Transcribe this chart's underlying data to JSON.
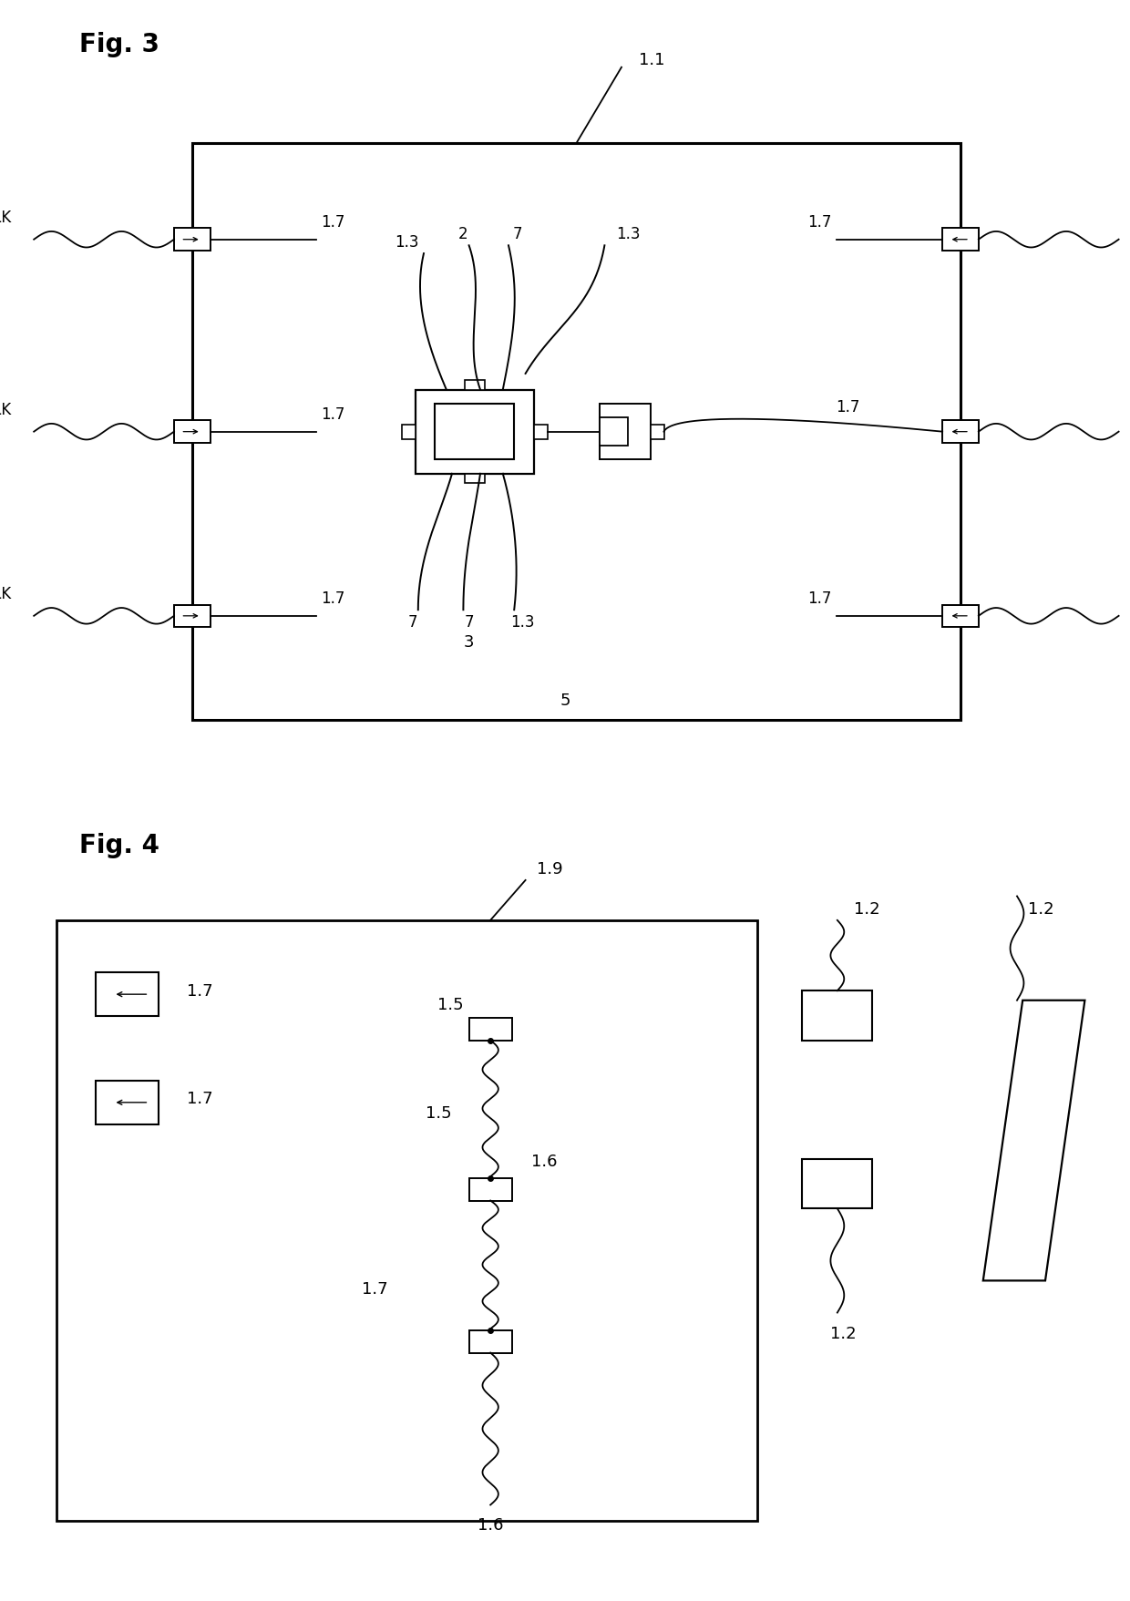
{
  "fig3_title": "Fig. 3",
  "fig4_title": "Fig. 4",
  "bg_color": "#ffffff",
  "lc": "#000000",
  "fs_fig": 20,
  "fs_label": 13
}
